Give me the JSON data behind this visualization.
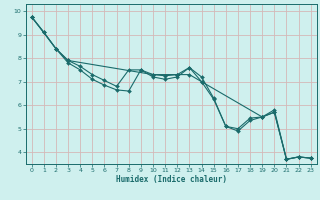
{
  "xlabel": "Humidex (Indice chaleur)",
  "bg_color": "#cff0ee",
  "line_color": "#1a6b6b",
  "grid_color": "#d4b8b8",
  "xlim": [
    -0.5,
    23.5
  ],
  "ylim": [
    3.5,
    10.3
  ],
  "line1_x": [
    0,
    1,
    2,
    3,
    4,
    5,
    6,
    7,
    8,
    9,
    10,
    11,
    12,
    13,
    14,
    15,
    16,
    17,
    18,
    19,
    20,
    21,
    22,
    23
  ],
  "line1_y": [
    9.75,
    9.1,
    8.4,
    7.8,
    7.5,
    7.1,
    6.85,
    6.65,
    6.6,
    7.5,
    7.2,
    7.1,
    7.2,
    7.6,
    7.2,
    6.3,
    5.1,
    4.9,
    5.35,
    5.5,
    5.7,
    3.7,
    3.8,
    3.75
  ],
  "line2_x": [
    0,
    1,
    2,
    3,
    4,
    5,
    6,
    7,
    8,
    9,
    10,
    11,
    12,
    13,
    14,
    15,
    16,
    17,
    18,
    19,
    20,
    21,
    22,
    23
  ],
  "line2_y": [
    9.75,
    9.1,
    8.4,
    7.9,
    7.65,
    7.3,
    7.05,
    6.8,
    7.5,
    7.5,
    7.3,
    7.25,
    7.3,
    7.3,
    7.0,
    6.25,
    5.1,
    5.0,
    5.45,
    5.5,
    5.8,
    3.7,
    3.8,
    3.75
  ],
  "line3_x": [
    0,
    2,
    3,
    10,
    12,
    13,
    14,
    19,
    20,
    21,
    22,
    23
  ],
  "line3_y": [
    9.75,
    8.4,
    7.9,
    7.3,
    7.3,
    7.6,
    7.0,
    5.5,
    5.7,
    3.7,
    3.8,
    3.75
  ],
  "yticks": [
    4,
    5,
    6,
    7,
    8,
    9,
    10
  ],
  "xticks": [
    0,
    1,
    2,
    3,
    4,
    5,
    6,
    7,
    8,
    9,
    10,
    11,
    12,
    13,
    14,
    15,
    16,
    17,
    18,
    19,
    20,
    21,
    22,
    23
  ]
}
